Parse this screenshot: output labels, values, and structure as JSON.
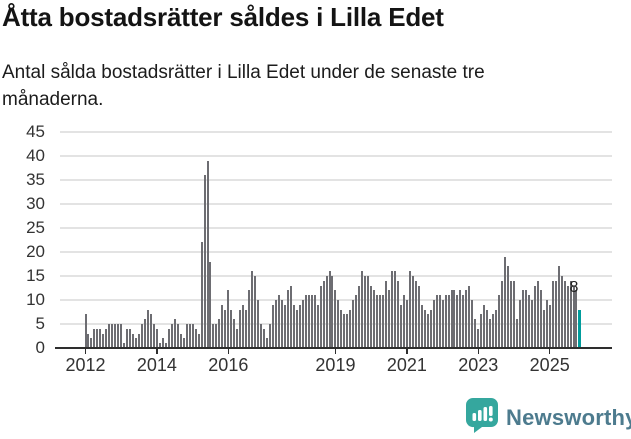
{
  "title": "Åtta bostadsrätter såldes i Lilla Edet",
  "subtitle_line1": "Antal sålda bostadsrätter i Lilla Edet under de senaste tre",
  "subtitle_line2": "månaderna.",
  "annotation": {
    "label": "8"
  },
  "logo": {
    "text": "Newsworthy",
    "icon": "newsworthy-bar-chart-bubble-icon"
  },
  "colors": {
    "bar": "#6d6d72",
    "highlight_bar": "#009c9c",
    "gridline": "#e3e3e3",
    "axis": "#2e2e2e",
    "text": "#1c1c1c",
    "axis_label": "#333333",
    "logo_icon": "#35a79e",
    "logo_text": "#4d7b8e"
  },
  "chart_data": {
    "type": "bar",
    "title": "Åtta bostadsrätter såldes i Lilla Edet",
    "subtitle": "Antal sålda bostadsrätter i Lilla Edet under de senaste tre månaderna.",
    "x_start": "2012-01",
    "x_end": "2025-11",
    "x_tick_labels": [
      "2012",
      "2014",
      "2016",
      "2019",
      "2021",
      "2023",
      "2025"
    ],
    "y_ticks": [
      0,
      5,
      10,
      15,
      20,
      25,
      30,
      35,
      40,
      45
    ],
    "ylim": [
      0,
      45
    ],
    "grid": "horizontal",
    "legend": "none",
    "series": [
      {
        "name": "Antal sålda bostadsrätter",
        "values": [
          7,
          3,
          2,
          4,
          4,
          4,
          3,
          4,
          5,
          5,
          5,
          5,
          5,
          1,
          4,
          4,
          3,
          2,
          3,
          5,
          6,
          8,
          7,
          5,
          4,
          1,
          2,
          1,
          4,
          5,
          6,
          5,
          3,
          2,
          5,
          5,
          5,
          4,
          3,
          22,
          36,
          39,
          18,
          5,
          5,
          6,
          9,
          8,
          12,
          8,
          6,
          4,
          8,
          9,
          8,
          12,
          16,
          15,
          10,
          5,
          4,
          2,
          5,
          9,
          10,
          11,
          10,
          9,
          12,
          13,
          9,
          8,
          9,
          10,
          11,
          11,
          11,
          11,
          9,
          13,
          14,
          15,
          16,
          15,
          12,
          10,
          8,
          7,
          7,
          8,
          10,
          11,
          13,
          16,
          15,
          15,
          13,
          12,
          11,
          11,
          11,
          14,
          12,
          16,
          16,
          14,
          9,
          11,
          10,
          16,
          15,
          14,
          13,
          9,
          8,
          7,
          8,
          10,
          11,
          11,
          10,
          11,
          11,
          12,
          12,
          11,
          12,
          11,
          12,
          13,
          10,
          6,
          4,
          7,
          9,
          8,
          6,
          7,
          8,
          11,
          14,
          19,
          17,
          14,
          14,
          6,
          10,
          12,
          12,
          11,
          10,
          13,
          14,
          12,
          8,
          10,
          9,
          14,
          14,
          17,
          15,
          14,
          13,
          14,
          13,
          12,
          8
        ]
      }
    ],
    "highlight": {
      "index": 166,
      "label": "8",
      "color": "#009c9c"
    }
  }
}
